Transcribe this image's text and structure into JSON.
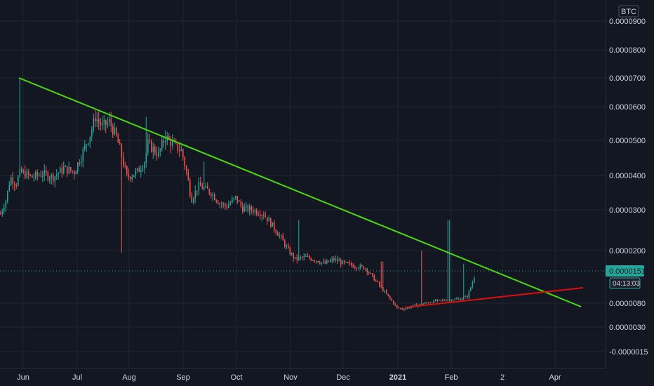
{
  "chart_data": {
    "type": "candlestick",
    "currency": "BTC",
    "y_ticks": [
      "0.0000900",
      "0.0000800",
      "0.0000700",
      "0.0000600",
      "0.0000500",
      "0.0000400",
      "0.0000300",
      "0.0000200",
      "0.0000080",
      "0.0000030",
      "-0.0000015"
    ],
    "x_ticks": [
      "Jun",
      "Jul",
      "Aug",
      "Sep",
      "Oct",
      "Nov",
      "Dec",
      "2021",
      "Feb",
      "2",
      "Apr"
    ],
    "last_price": "0.0000151",
    "countdown": "04:13:03",
    "colors": {
      "background": "#131722",
      "grid": "#1f2430",
      "up": "#26a69a",
      "down": "#ef5350",
      "resistance_line": "#4ad90f",
      "support_line": "#e00d0d",
      "badge": "#26a69a",
      "text": "#d1d4dc"
    },
    "trendlines": [
      {
        "name": "resistance",
        "color": "#4ad90f"
      },
      {
        "name": "support",
        "color": "#e00d0d"
      }
    ]
  }
}
